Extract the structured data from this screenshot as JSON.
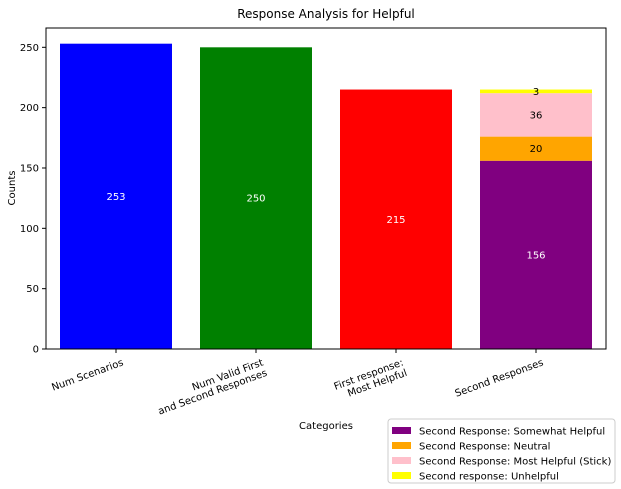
{
  "chart_data": {
    "type": "bar",
    "title": "Response Analysis for Helpful",
    "xlabel": "Categories",
    "ylabel": "Counts",
    "ylim": [
      0,
      266
    ],
    "yticks": [
      0,
      50,
      100,
      150,
      200,
      250
    ],
    "categories": [
      [
        "Num Scenarios"
      ],
      [
        "Num Valid First",
        "and Second Responses"
      ],
      [
        "First response:",
        "Most Helpful"
      ],
      [
        "Second Responses"
      ]
    ],
    "simple_bars": [
      {
        "category_index": 0,
        "value": 253,
        "color": "#0000ff",
        "label": "253",
        "label_color": "#ffffff"
      },
      {
        "category_index": 1,
        "value": 250,
        "color": "#008000",
        "label": "250",
        "label_color": "#ffffff"
      },
      {
        "category_index": 2,
        "value": 215,
        "color": "#ff0000",
        "label": "215",
        "label_color": "#ffffff"
      }
    ],
    "stacked_bar": {
      "category_index": 3,
      "segments": [
        {
          "name": "Second Response: Somewhat Helpful",
          "value": 156,
          "color": "#800080",
          "label": "156",
          "label_color": "#ffffff"
        },
        {
          "name": "Second Response: Neutral",
          "value": 20,
          "color": "#ffa500",
          "label": "20",
          "label_color": "#000000"
        },
        {
          "name": "Second Response: Most Helpful (Stick)",
          "value": 36,
          "color": "#ffc0cb",
          "label": "36",
          "label_color": "#000000"
        },
        {
          "name": "Second response: Unhelpful",
          "value": 3,
          "color": "#ffff00",
          "label": "3",
          "label_color": "#000000"
        }
      ]
    },
    "legend": {
      "placement": "bottom-right",
      "entries": [
        {
          "label": "Second Response: Somewhat Helpful",
          "color": "#800080"
        },
        {
          "label": "Second Response: Neutral",
          "color": "#ffa500"
        },
        {
          "label": "Second Response: Most Helpful (Stick)",
          "color": "#ffc0cb"
        },
        {
          "label": "Second response: Unhelpful",
          "color": "#ffff00"
        }
      ]
    },
    "grid": false
  }
}
